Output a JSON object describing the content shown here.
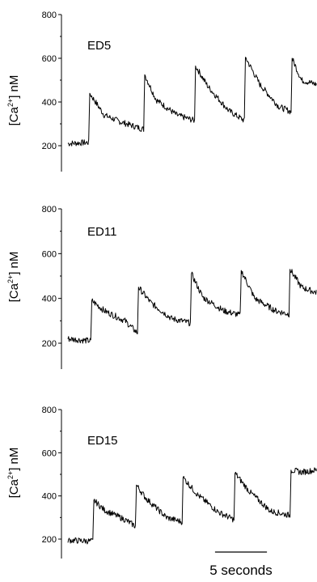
{
  "chart_data": [
    {
      "type": "line",
      "panel_label": "ED5",
      "ylabel_main": "[Ca",
      "ylabel_sup": "2+",
      "ylabel_rest": "] nM",
      "ylim": [
        140,
        800
      ],
      "yticks": [
        "200",
        "400",
        "600",
        "800"
      ],
      "ytick_values": [
        200,
        400,
        600,
        800
      ],
      "xlim": [
        0,
        24
      ],
      "series": [
        {
          "x": [
            0,
            2.0,
            2.1,
            3.5,
            5.0,
            7.3,
            7.4,
            8.5,
            10.5,
            12.2,
            12.3,
            13.5,
            15.5,
            17.0,
            17.1,
            18.5,
            20.3,
            21.5,
            21.6,
            22.5,
            24
          ],
          "y": [
            210,
            215,
            440,
            340,
            310,
            275,
            525,
            410,
            340,
            315,
            565,
            470,
            360,
            315,
            605,
            480,
            380,
            355,
            600,
            500,
            480
          ]
        }
      ]
    },
    {
      "type": "line",
      "panel_label": "ED11",
      "ylabel_main": "[Ca",
      "ylabel_sup": "2+",
      "ylabel_rest": "] nM",
      "ylim": [
        140,
        800
      ],
      "yticks": [
        "200",
        "400",
        "600",
        "800"
      ],
      "ytick_values": [
        200,
        400,
        600,
        800
      ],
      "xlim": [
        0,
        24
      ],
      "series": [
        {
          "x": [
            0,
            2.2,
            2.3,
            3.5,
            5.5,
            6.7,
            6.8,
            8.0,
            10.0,
            11.8,
            11.9,
            13.0,
            15.0,
            16.6,
            16.7,
            18.0,
            20.0,
            21.3,
            21.4,
            22.5,
            24
          ],
          "y": [
            220,
            210,
            390,
            345,
            300,
            245,
            450,
            380,
            310,
            290,
            510,
            405,
            345,
            325,
            525,
            400,
            345,
            330,
            530,
            450,
            425
          ]
        }
      ]
    },
    {
      "type": "line",
      "panel_label": "ED15",
      "ylabel_main": "[Ca",
      "ylabel_sup": "2+",
      "ylabel_rest": "] nM",
      "ylim": [
        140,
        800
      ],
      "yticks": [
        "200",
        "400",
        "600",
        "800"
      ],
      "ytick_values": [
        200,
        400,
        600,
        800
      ],
      "xlim": [
        0,
        24
      ],
      "series": [
        {
          "x": [
            0,
            2.4,
            2.5,
            3.5,
            5.5,
            6.5,
            6.6,
            7.5,
            9.5,
            11.0,
            11.1,
            12.5,
            14.5,
            16.0,
            16.1,
            17.5,
            19.5,
            21.4,
            21.5,
            22.5,
            24
          ],
          "y": [
            195,
            190,
            380,
            335,
            290,
            260,
            450,
            390,
            300,
            280,
            485,
            405,
            325,
            290,
            505,
            420,
            330,
            310,
            520,
            510,
            520
          ]
        }
      ]
    }
  ],
  "scalebar": {
    "label": "5 seconds",
    "seconds": 5
  }
}
